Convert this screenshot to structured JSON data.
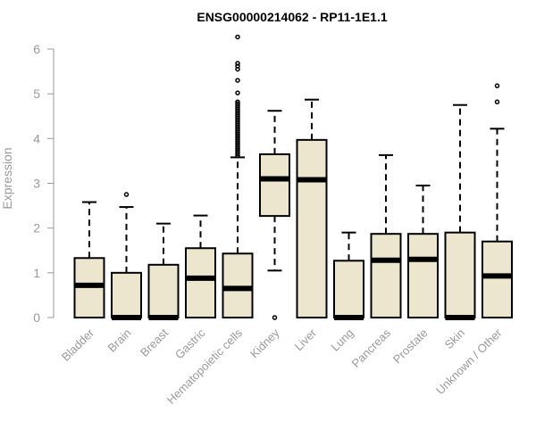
{
  "chart_data": {
    "type": "boxplot",
    "title": "ENSG00000214062 - RP11-1E1.1",
    "xlabel": "",
    "ylabel": "Expression",
    "ylim": [
      0,
      6
    ],
    "yticks": [
      0,
      1,
      2,
      3,
      4,
      5,
      6
    ],
    "categories": [
      "Bladder",
      "Brain",
      "Breast",
      "Gastric",
      "Hematopoietic cells",
      "Kidney",
      "Liver",
      "Lung",
      "Pancreas",
      "Prostate",
      "Skin",
      "Unknown / Other"
    ],
    "boxes": [
      {
        "min": 0,
        "q1": 0,
        "median": 0.72,
        "q3": 1.33,
        "max": 2.58,
        "outliers": []
      },
      {
        "min": 0,
        "q1": 0,
        "median": 0.0,
        "q3": 1.0,
        "max": 2.47,
        "outliers": [
          2.75
        ]
      },
      {
        "min": 0,
        "q1": 0,
        "median": 0.0,
        "q3": 1.18,
        "max": 2.1,
        "outliers": []
      },
      {
        "min": 0,
        "q1": 0,
        "median": 0.88,
        "q3": 1.55,
        "max": 2.28,
        "outliers": []
      },
      {
        "min": 0,
        "q1": 0,
        "median": 0.65,
        "q3": 1.43,
        "max": 3.58,
        "outliers": [
          3.62,
          3.66,
          3.7,
          3.74,
          3.78,
          3.82,
          3.86,
          3.9,
          3.94,
          3.98,
          4.02,
          4.06,
          4.1,
          4.14,
          4.18,
          4.22,
          4.26,
          4.3,
          4.34,
          4.38,
          4.42,
          4.46,
          4.5,
          4.54,
          4.58,
          4.62,
          4.66,
          4.7,
          4.74,
          4.78,
          4.82,
          5.02,
          5.3,
          5.55,
          5.62,
          5.68,
          6.27
        ]
      },
      {
        "min": 1.05,
        "q1": 2.27,
        "median": 3.1,
        "q3": 3.65,
        "max": 4.62,
        "outliers": [
          0.0
        ]
      },
      {
        "min": 0,
        "q1": 0,
        "median": 3.08,
        "q3": 3.97,
        "max": 4.87,
        "outliers": []
      },
      {
        "min": 0,
        "q1": 0,
        "median": 0.0,
        "q3": 1.27,
        "max": 1.9,
        "outliers": []
      },
      {
        "min": 0,
        "q1": 0,
        "median": 1.28,
        "q3": 1.87,
        "max": 3.63,
        "outliers": []
      },
      {
        "min": 0,
        "q1": 0,
        "median": 1.3,
        "q3": 1.87,
        "max": 2.95,
        "outliers": []
      },
      {
        "min": 0,
        "q1": 0,
        "median": 0.0,
        "q3": 1.9,
        "max": 4.75,
        "outliers": []
      },
      {
        "min": 0,
        "q1": 0,
        "median": 0.93,
        "q3": 1.7,
        "max": 4.22,
        "outliers": [
          4.82,
          5.18
        ]
      }
    ]
  }
}
